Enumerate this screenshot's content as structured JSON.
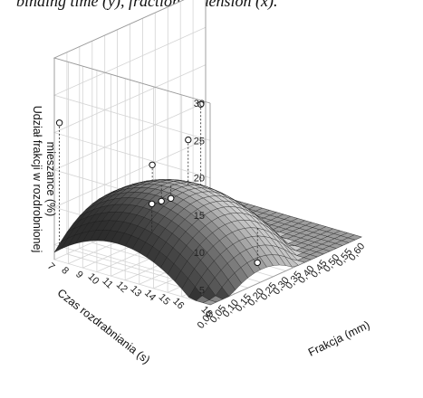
{
  "caption": "binding time (y), fraction dimension (x).",
  "chart_data": {
    "type": "surface3d",
    "title": "",
    "xlabel": "Frakcja (mm)",
    "ylabel": "Czas rozdrabniania (s)",
    "zlabel": "Udział frakcji w rozdrobnionej mieszance (%)",
    "zlabel_lines": [
      "Udział frakcji w rozdrobnionej",
      "mieszance (%)"
    ],
    "x_ticks": [
      "0,00",
      "0,05",
      "0,10",
      "0,15",
      "0,20",
      "0,25",
      "0,30",
      "0,35",
      "0,40",
      "0,45",
      "0,50",
      "0,55",
      "0,60"
    ],
    "y_ticks": [
      "7",
      "8",
      "9",
      "10",
      "11",
      "12",
      "13",
      "14",
      "15",
      "16",
      "18"
    ],
    "z_ticks": [
      "5",
      "10",
      "15",
      "20",
      "25",
      "30"
    ],
    "xlim": [
      0,
      0.6
    ],
    "ylim": [
      7,
      18
    ],
    "zlim": [
      3,
      30
    ],
    "surface": {
      "model": "z = a + bx*x + cx*x^2 + by*y + cy*y^2",
      "a": -16.01,
      "bx": 44.4,
      "cx": -108,
      "by": 4.1,
      "cy": -0.178,
      "x_range": [
        0,
        0.6
      ],
      "y_range": [
        7,
        18
      ]
    },
    "points": [
      {
        "x": 0.02,
        "y": 7,
        "z": 21
      },
      {
        "x": 0.3,
        "y": 12,
        "z": 22
      },
      {
        "x": 0.22,
        "y": 10,
        "z": 14
      },
      {
        "x": 0.2,
        "y": 11,
        "z": 10
      },
      {
        "x": 0.25,
        "y": 12,
        "z": 18
      },
      {
        "x": 0.35,
        "y": 9,
        "z": 7
      },
      {
        "x": 0.3,
        "y": 16,
        "z": 3
      },
      {
        "x": 0.05,
        "y": 13,
        "z": 13
      }
    ]
  }
}
